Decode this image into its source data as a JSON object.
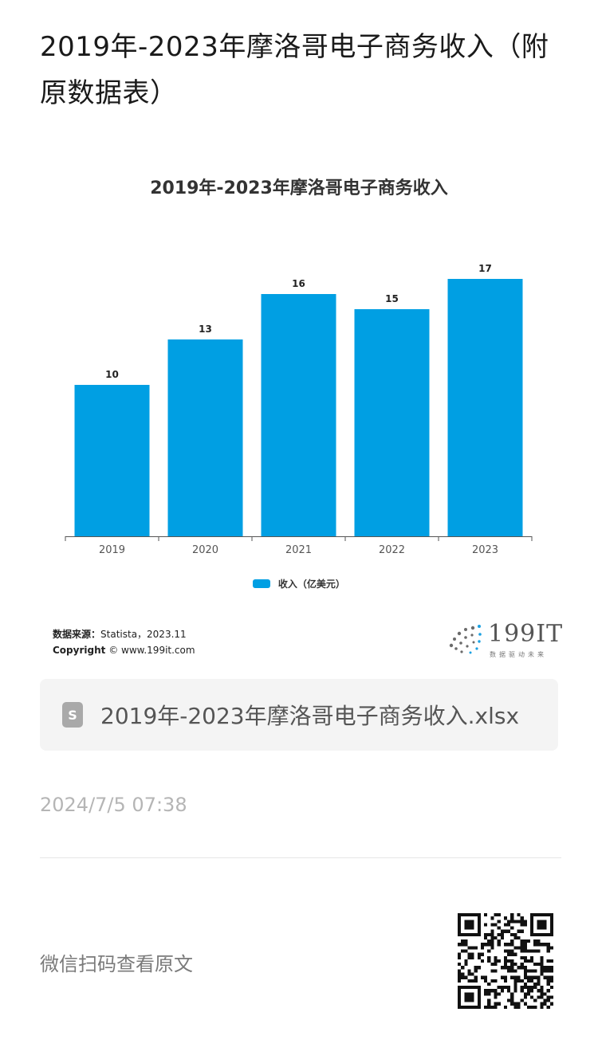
{
  "article": {
    "title": "2019年-2023年摩洛哥电子商务收入（附原数据表）",
    "timestamp": "2024/7/5 07:38",
    "scan_text": "微信扫码查看原文"
  },
  "chart_data": {
    "type": "bar",
    "title": "2019年-2023年摩洛哥电子商务收入",
    "categories": [
      "2019",
      "2020",
      "2021",
      "2022",
      "2023"
    ],
    "series": [
      {
        "name": "收入（亿美元）",
        "values": [
          10,
          13,
          16,
          15,
          17
        ],
        "color": "#009fe3"
      }
    ],
    "data_labels": true,
    "xlabel": "",
    "ylabel": "",
    "ylim": [
      0,
      18
    ],
    "grid": false,
    "legend_position": "bottom-center"
  },
  "source": {
    "label": "数据来源：",
    "text": "Statista，2023.11",
    "copyright_label": "Copyright",
    "copyright_text": "© www.199it.com"
  },
  "logo": {
    "text": "199IT",
    "tagline": "数据驱动未来"
  },
  "attachment": {
    "icon": "spreadsheet-icon",
    "icon_letter": "S",
    "file_name": "2019年-2023年摩洛哥电子商务收入.xlsx"
  },
  "colors": {
    "bar": "#009fe3",
    "text": "#1a1a1a",
    "muted": "#b5b5b5"
  }
}
